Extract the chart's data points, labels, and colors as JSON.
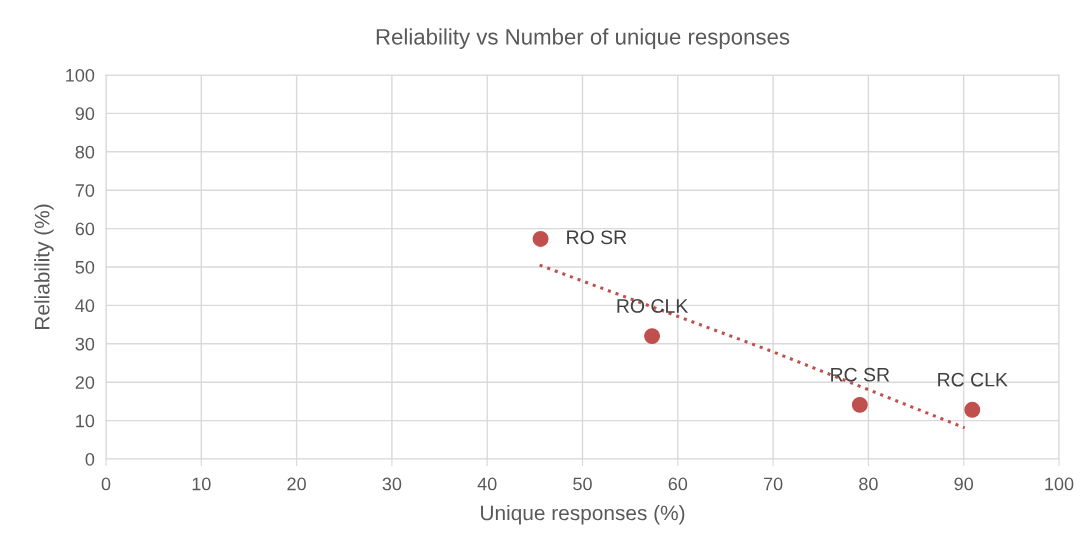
{
  "chart_data": {
    "type": "scatter",
    "title": "Reliability vs Number of unique responses",
    "xlabel": "Unique responses (%)",
    "ylabel": "Reliability (%)",
    "series": [
      {
        "type": "scatter",
        "color": "#c0504d",
        "x": [
          45.6,
          57.3,
          79.1,
          90.9
        ],
        "values": [
          57.3,
          32.0,
          14.1,
          12.8
        ],
        "marker": "circle"
      },
      {
        "type": "line",
        "color": "#c0504d",
        "x": [
          45.5,
          69.7,
          90.1
        ],
        "values": [
          50.5,
          28.2,
          8.1
        ],
        "line_style": "dotted",
        "marker": "none"
      }
    ],
    "annotations": [
      {
        "text": "RO SR",
        "x": 45.6,
        "y": 57.3
      },
      {
        "text": "RO CLK",
        "x": 57.3,
        "y": 32.0
      },
      {
        "text": "RC SR",
        "x": 79.1,
        "y": 14.1
      },
      {
        "text": "RC CLK",
        "x": 90.9,
        "y": 12.8
      }
    ],
    "xlim": [
      0,
      100
    ],
    "xticks": [
      0,
      10,
      20,
      30,
      40,
      50,
      60,
      70,
      80,
      90,
      100
    ],
    "ylim": [
      0,
      100
    ],
    "yticks": [
      0,
      10,
      20,
      30,
      40,
      50,
      60,
      70,
      80,
      90,
      100
    ],
    "grid": true,
    "legend": false
  }
}
